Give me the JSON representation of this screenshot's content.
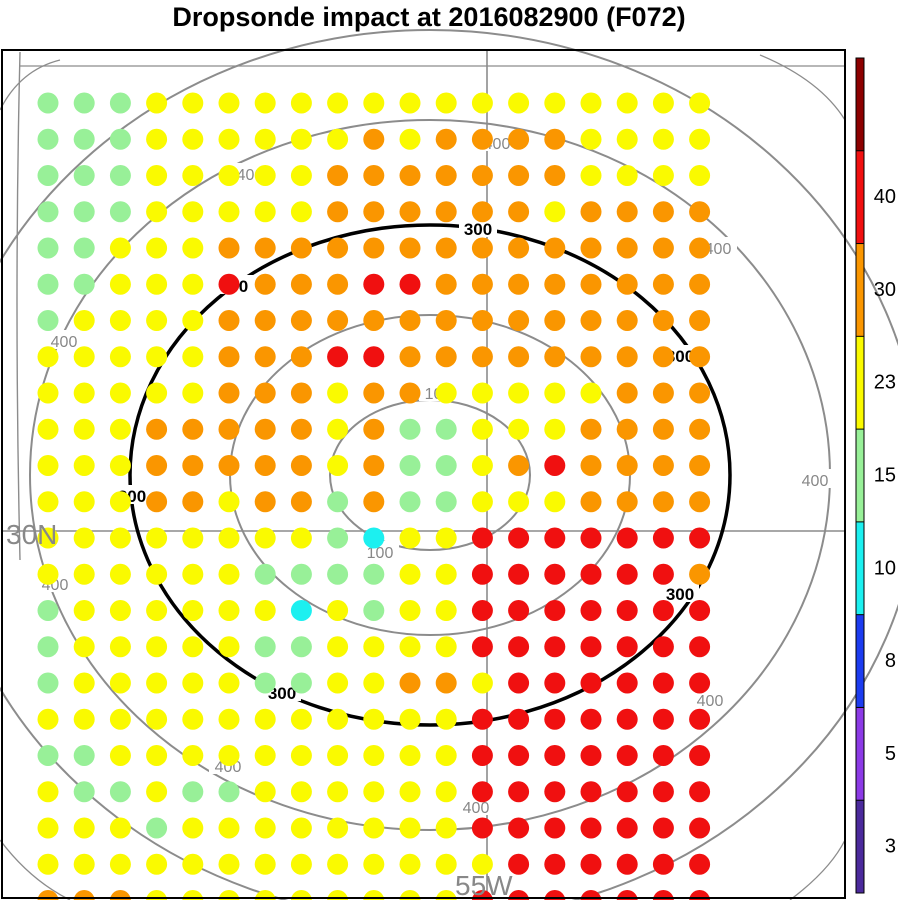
{
  "chart_data": {
    "type": "scatter",
    "title": "Dropsonde impact at 2016082900 (F072)",
    "axis_labels": {
      "lat": "30N",
      "lon": "55W"
    },
    "contours": [
      {
        "level": 100,
        "label": "100",
        "color": "#8c8c8c",
        "emphasis": false
      },
      {
        "level": 200,
        "label": "",
        "color": "#8c8c8c",
        "emphasis": false
      },
      {
        "level": 300,
        "label": "300",
        "color": "#000000",
        "emphasis": true
      },
      {
        "level": 400,
        "label": "400",
        "color": "#8c8c8c",
        "emphasis": false
      },
      {
        "level": 500,
        "label": "",
        "color": "#8c8c8c",
        "emphasis": false
      }
    ],
    "colorbar": {
      "labels": [
        "3",
        "5",
        "8",
        "10",
        "15",
        "23",
        "30",
        "40"
      ],
      "colors": [
        "#4b2a9c",
        "#8c3ae6",
        "#1c3cf0",
        "#1cf0f0",
        "#98f098",
        "#fafa00",
        "#fa9600",
        "#f01010",
        "#8c0000"
      ]
    },
    "legend_position": "right",
    "grid_rows": [
      "GGGYYYYYYYYYYYYYYYY",
      "GGGYYYYYYOYOOOOYYYY",
      "GGGYYYYYOOOOOOOYYYY",
      "GGGYYYYYOOOOOOYOOOO",
      "GGYYYOOOOOOOOOOOOOO",
      "GGYYYROOORROOOOOOOO",
      "GYYYYOOOOOOOOOOOOOO",
      "YYYYYOOORROOOOOOOOO",
      "YYYYYOOOYOOYYYYYOOO",
      "YYYOOOOOYOGGYYYOOOO",
      "YYYOOOOOYOGGYOROOOO",
      "YYYOOYOOGOGGYYYOOOO",
      "YYYYYYYYGCYYRRRRRRR",
      "YYYYYYGGGGYYRRRRRRO",
      "GYYYYYYCYGYYRRRRRRR",
      "GYYYYYGGYYYYRRRRRRR",
      "GYYYYYGGYYOOYRRRRRR",
      "YYYYYYYYYYYYRRRRRRR",
      "GGYYYYYYYYYYRRRRRRR",
      "YGGYGGYYYYYYRRRRRRR",
      "YYYGYYYYYYYYRRRRRRR",
      "YYYYYYYYYYYYYRRRRRR",
      "OOOYYYYYYYYYRRRRRRR"
    ],
    "category_colors": {
      "G": "#98f098",
      "Y": "#fafa00",
      "O": "#fa9600",
      "R": "#f01010",
      "C": "#1cf0f0"
    }
  }
}
